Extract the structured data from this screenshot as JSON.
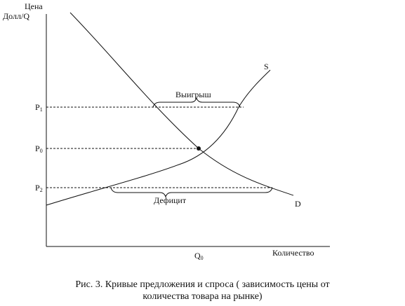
{
  "y_axis_label_line1": "Цена",
  "y_axis_label_line2": "Долл/Q",
  "x_axis_label": "Количество",
  "supply_label": "S",
  "demand_label": "D",
  "p1_main": "P",
  "p1_sub": "1",
  "p0_main": "P",
  "p0_sub": "0",
  "p2_main": "P",
  "p2_sub": "2",
  "q0_main": "Q",
  "q0_sub": "0",
  "surplus_label": "Выигрыш",
  "deficit_label": "Дефицит",
  "caption_line1": "Рис. 3. Кривые предложения и спроса ( зависимость цены от",
  "caption_line2": "количества товара на рынке)"
}
